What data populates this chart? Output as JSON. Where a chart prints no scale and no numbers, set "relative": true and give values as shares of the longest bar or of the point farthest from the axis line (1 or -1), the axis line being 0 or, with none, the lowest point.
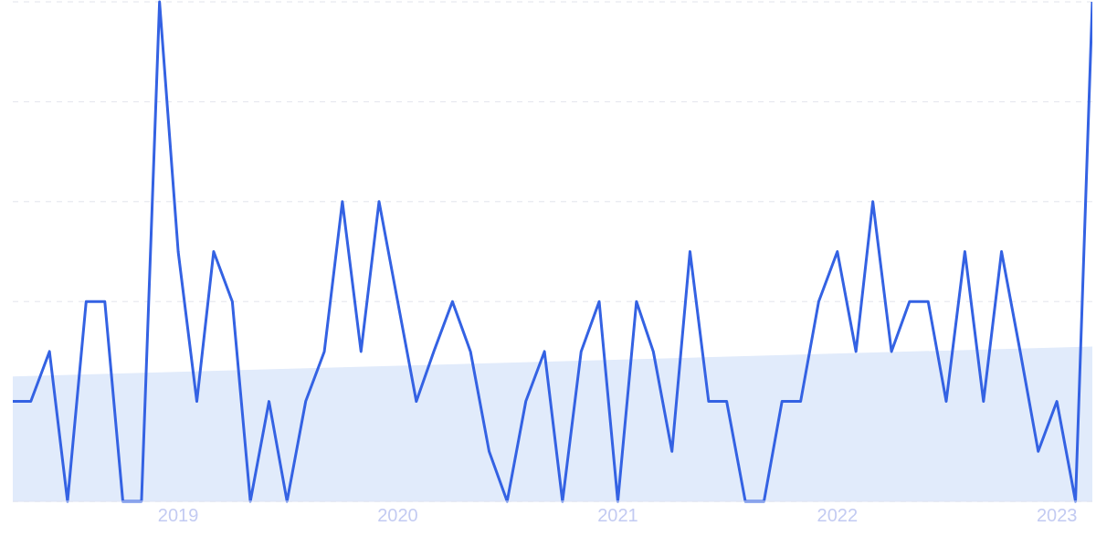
{
  "chart_data": {
    "type": "line",
    "relative": true,
    "grid": "y",
    "marker": "none",
    "x": [
      "2018-04",
      "2018-05",
      "2018-06",
      "2018-07",
      "2018-08",
      "2018-09",
      "2018-10",
      "2018-11",
      "2018-12",
      "2019-01",
      "2019-02",
      "2019-03",
      "2019-04",
      "2019-05",
      "2019-06",
      "2019-07",
      "2019-08",
      "2019-09",
      "2019-10",
      "2019-11",
      "2019-12",
      "2020-01",
      "2020-02",
      "2020-03",
      "2020-04",
      "2020-05",
      "2020-06",
      "2020-07",
      "2020-08",
      "2020-09",
      "2020-10",
      "2020-11",
      "2020-12",
      "2021-01",
      "2021-02",
      "2021-03",
      "2021-04",
      "2021-05",
      "2021-06",
      "2021-07",
      "2021-08",
      "2021-09",
      "2021-10",
      "2021-11",
      "2021-12",
      "2022-01",
      "2022-02",
      "2022-03",
      "2022-04",
      "2022-05",
      "2022-06",
      "2022-07",
      "2022-08",
      "2022-09",
      "2022-10",
      "2022-11",
      "2022-12",
      "2023-01",
      "2023-02",
      "2023-03"
    ],
    "xlim": [
      "2018-04",
      "2023-03"
    ],
    "xticks": [
      {
        "value": "2019-01",
        "label": "2019"
      },
      {
        "value": "2020-01",
        "label": "2020"
      },
      {
        "value": "2021-01",
        "label": "2021"
      },
      {
        "value": "2022-01",
        "label": "2022"
      },
      {
        "value": "2023-01",
        "label": "2023"
      }
    ],
    "series": [
      {
        "color": "#3462e3",
        "values": [
          0.2,
          0.2,
          0.3,
          0,
          0.4,
          0.4,
          0,
          0,
          1,
          0.5,
          0.2,
          0.5,
          0.4,
          0,
          0.2,
          0,
          0.2,
          0.3,
          0.6,
          0.3,
          0.6,
          0.4,
          0.2,
          0.3,
          0.4,
          0.3,
          0.1,
          0,
          0.2,
          0.3,
          0,
          0.3,
          0.4,
          0,
          0.4,
          0.3,
          0.1,
          0.5,
          0.2,
          0.2,
          0,
          0,
          0.2,
          0.2,
          0.4,
          0.5,
          0.3,
          0.6,
          0.3,
          0.4,
          0.4,
          0.2,
          0.5,
          0.2,
          0.5,
          0.3,
          0.1,
          0.2,
          0,
          1
        ]
      },
      {
        "type": "area",
        "color": "#e1ebfb",
        "x": [
          "2018-04",
          "2023-03"
        ],
        "values": [
          0.25,
          0.31
        ]
      }
    ]
  }
}
